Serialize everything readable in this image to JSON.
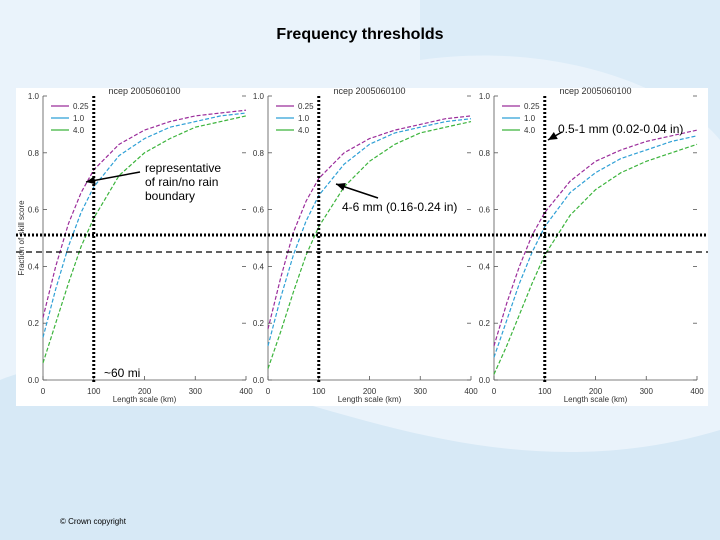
{
  "slide": {
    "title": "Frequency thresholds",
    "footer": "© Crown copyright"
  },
  "annotations": {
    "boundary_line1": "representative",
    "boundary_line2": "of rain/no rain",
    "boundary_line3": "boundary",
    "mid_label": "4-6 mm (0.16-0.24 in)",
    "right_label": "0.5-1 mm (0.02-0.04 in)",
    "distance_label": "~60 mi"
  },
  "chart_data": [
    {
      "type": "line",
      "title": "ncep 2005060100",
      "xlabel": "Length scale (km)",
      "ylabel": "Fraction of skill score",
      "xlim": [
        0,
        400
      ],
      "ylim": [
        0.0,
        1.0
      ],
      "xticks": [
        0,
        100,
        200,
        300,
        400
      ],
      "yticks": [
        0.0,
        0.2,
        0.4,
        0.6,
        0.8,
        1.0
      ],
      "threshold_y": 0.5,
      "marker_x": 100,
      "x": [
        0,
        25,
        50,
        75,
        100,
        150,
        200,
        250,
        300,
        350,
        400
      ],
      "series": [
        {
          "name": "0.25",
          "color": "#9b2d9b",
          "values": [
            0.22,
            0.4,
            0.55,
            0.66,
            0.74,
            0.83,
            0.88,
            0.91,
            0.93,
            0.94,
            0.95
          ]
        },
        {
          "name": "1.0",
          "color": "#2fa0d6",
          "values": [
            0.15,
            0.32,
            0.47,
            0.59,
            0.68,
            0.79,
            0.85,
            0.89,
            0.91,
            0.93,
            0.94
          ]
        },
        {
          "name": "4.0",
          "color": "#3cb43c",
          "values": [
            0.06,
            0.2,
            0.34,
            0.47,
            0.57,
            0.72,
            0.8,
            0.85,
            0.89,
            0.91,
            0.93
          ]
        }
      ]
    },
    {
      "type": "line",
      "title": "ncep 2005060100",
      "xlabel": "Length scale (km)",
      "ylabel": "",
      "xlim": [
        0,
        400
      ],
      "ylim": [
        0.0,
        1.0
      ],
      "xticks": [
        0,
        100,
        200,
        300,
        400
      ],
      "yticks": [
        0.0,
        0.2,
        0.4,
        0.6,
        0.8,
        1.0
      ],
      "threshold_y": 0.5,
      "marker_x": 100,
      "x": [
        0,
        25,
        50,
        75,
        100,
        150,
        200,
        250,
        300,
        350,
        400
      ],
      "series": [
        {
          "name": "0.25",
          "color": "#9b2d9b",
          "values": [
            0.18,
            0.36,
            0.52,
            0.63,
            0.71,
            0.8,
            0.85,
            0.88,
            0.9,
            0.92,
            0.93
          ]
        },
        {
          "name": "1.0",
          "color": "#2fa0d6",
          "values": [
            0.12,
            0.29,
            0.44,
            0.56,
            0.65,
            0.76,
            0.83,
            0.87,
            0.89,
            0.91,
            0.92
          ]
        },
        {
          "name": "4.0",
          "color": "#3cb43c",
          "values": [
            0.04,
            0.17,
            0.31,
            0.44,
            0.54,
            0.68,
            0.77,
            0.83,
            0.87,
            0.89,
            0.91
          ]
        }
      ]
    },
    {
      "type": "line",
      "title": "ncep 2005060100",
      "xlabel": "Length scale (km)",
      "ylabel": "",
      "xlim": [
        0,
        400
      ],
      "ylim": [
        0.0,
        1.0
      ],
      "xticks": [
        0,
        100,
        200,
        300,
        400
      ],
      "yticks": [
        0.0,
        0.2,
        0.4,
        0.6,
        0.8,
        1.0
      ],
      "threshold_y": 0.5,
      "marker_x": 100,
      "x": [
        0,
        25,
        50,
        75,
        100,
        150,
        200,
        250,
        300,
        350,
        400
      ],
      "series": [
        {
          "name": "0.25",
          "color": "#9b2d9b",
          "values": [
            0.12,
            0.27,
            0.4,
            0.51,
            0.59,
            0.7,
            0.77,
            0.81,
            0.84,
            0.86,
            0.88
          ]
        },
        {
          "name": "1.0",
          "color": "#2fa0d6",
          "values": [
            0.08,
            0.21,
            0.34,
            0.45,
            0.54,
            0.66,
            0.73,
            0.78,
            0.81,
            0.84,
            0.86
          ]
        },
        {
          "name": "4.0",
          "color": "#3cb43c",
          "values": [
            0.02,
            0.12,
            0.23,
            0.34,
            0.44,
            0.58,
            0.67,
            0.73,
            0.77,
            0.8,
            0.83
          ]
        }
      ]
    }
  ]
}
